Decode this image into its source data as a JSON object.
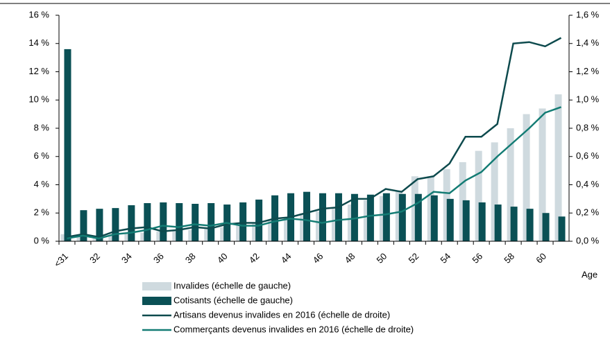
{
  "chart_data": {
    "type": "bar",
    "x_label": "Age",
    "categories": [
      "<31",
      null,
      "32",
      null,
      "34",
      null,
      "36",
      null,
      "38",
      null,
      "40",
      null,
      "42",
      null,
      "44",
      null,
      "46",
      null,
      "48",
      null,
      "50",
      null,
      "52",
      null,
      "54",
      null,
      "56",
      null,
      "58",
      null,
      "60",
      null
    ],
    "series": [
      {
        "name": "Invalides (échelle de gauche)",
        "color": "#cfdadf",
        "type": "bar",
        "values": [
          0.5,
          0.3,
          0.3,
          0.4,
          0.5,
          0.6,
          0.7,
          0.8,
          0.8,
          0.9,
          1.0,
          1.1,
          1.3,
          1.5,
          1.7,
          1.9,
          2.1,
          2.3,
          2.6,
          2.9,
          3.2,
          3.6,
          4.6,
          4.6,
          5.1,
          5.6,
          6.4,
          7.0,
          8.0,
          9.0,
          9.4,
          10.4
        ]
      },
      {
        "name": "Cotisants (échelle de gauche)",
        "color": "#0a5055",
        "type": "bar",
        "values": [
          13.6,
          2.2,
          2.3,
          2.35,
          2.55,
          2.7,
          2.75,
          2.7,
          2.65,
          2.7,
          2.6,
          2.75,
          2.95,
          3.25,
          3.4,
          3.5,
          3.4,
          3.4,
          3.35,
          3.3,
          3.4,
          3.35,
          3.35,
          3.25,
          3.0,
          2.9,
          2.75,
          2.6,
          2.45,
          2.3,
          2.0,
          1.75
        ]
      },
      {
        "name": "Artisans devenus invalides en 2016 (échelle de droite)",
        "color": "#0d4a4d",
        "type": "line",
        "axis": "y2",
        "values": [
          0.03,
          0.05,
          0.03,
          0.07,
          0.09,
          0.1,
          0.07,
          0.08,
          0.1,
          0.09,
          0.12,
          0.13,
          0.13,
          0.16,
          0.17,
          0.2,
          0.23,
          0.24,
          0.3,
          0.3,
          0.37,
          0.35,
          0.44,
          0.46,
          0.55,
          0.74,
          0.74,
          0.83,
          1.4,
          1.41,
          1.38,
          1.44
        ]
      },
      {
        "name": "Commerçants devenus invalides en 2016 (échelle de droite)",
        "color": "#137c74",
        "type": "line",
        "axis": "y2",
        "values": [
          0.02,
          0.04,
          0.02,
          0.05,
          0.06,
          0.08,
          0.11,
          0.1,
          0.12,
          0.11,
          0.13,
          0.11,
          0.11,
          0.14,
          0.16,
          0.15,
          0.13,
          0.15,
          0.16,
          0.18,
          0.19,
          0.21,
          0.27,
          0.35,
          0.34,
          0.43,
          0.49,
          0.6,
          0.7,
          0.8,
          0.91,
          0.95
        ]
      }
    ],
    "ylim": [
      0,
      16
    ],
    "yticks": [
      {
        "value": 0,
        "label": "0 %"
      },
      {
        "value": 2,
        "label": "2 %"
      },
      {
        "value": 4,
        "label": "4 %"
      },
      {
        "value": 6,
        "label": "6 %"
      },
      {
        "value": 8,
        "label": "8 %"
      },
      {
        "value": 10,
        "label": "10 %"
      },
      {
        "value": 12,
        "label": "12 %"
      },
      {
        "value": 14,
        "label": "14 %"
      },
      {
        "value": 16,
        "label": "16 %"
      }
    ],
    "y2lim": [
      0,
      1.6
    ],
    "y2ticks": [
      {
        "value": 0,
        "label": "0,0 %"
      },
      {
        "value": 0.2,
        "label": "0,2 %"
      },
      {
        "value": 0.4,
        "label": "0,4 %"
      },
      {
        "value": 0.6,
        "label": "0,6 %"
      },
      {
        "value": 0.8,
        "label": "0,8 %"
      },
      {
        "value": 1.0,
        "label": "1,0 %"
      },
      {
        "value": 1.2,
        "label": "1,2 %"
      },
      {
        "value": 1.4,
        "label": "1,4 %"
      },
      {
        "value": 1.6,
        "label": "1,6 %"
      }
    ]
  }
}
